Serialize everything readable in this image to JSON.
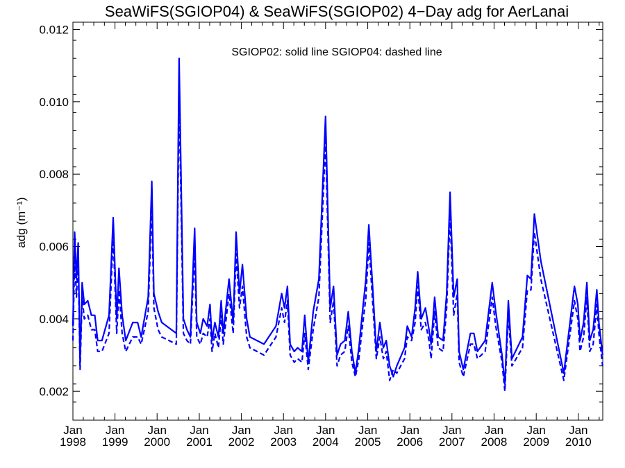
{
  "chart_data": {
    "type": "line",
    "title": "SeaWiFS(SGIOP04) & SeaWiFS(SGIOP02) 4−Day adg for AerLanai",
    "annotation": "SGIOP02: solid line   SGIOP04: dashed line",
    "ylabel": "adg (m⁻¹)",
    "xlabel": "",
    "xlim": [
      "1998-01-01",
      "2010-08-01"
    ],
    "ylim": [
      0.0012,
      0.0122
    ],
    "y_ticks": [
      "0.002",
      "0.004",
      "0.006",
      "0.008",
      "0.010",
      "0.012"
    ],
    "y_tick_values": [
      0.002,
      0.004,
      0.006,
      0.008,
      0.01,
      0.012
    ],
    "x_tick_labels": [
      {
        "month": "Jan",
        "year": "1998",
        "date": "1998-01-01"
      },
      {
        "month": "Jan",
        "year": "1999",
        "date": "1999-01-01"
      },
      {
        "month": "Jan",
        "year": "2000",
        "date": "2000-01-01"
      },
      {
        "month": "Jan",
        "year": "2001",
        "date": "2001-01-01"
      },
      {
        "month": "Jan",
        "year": "2002",
        "date": "2002-01-01"
      },
      {
        "month": "Jan",
        "year": "2003",
        "date": "2003-01-01"
      },
      {
        "month": "Jan",
        "year": "2004",
        "date": "2004-01-01"
      },
      {
        "month": "Jan",
        "year": "2005",
        "date": "2005-01-01"
      },
      {
        "month": "Jan",
        "year": "2006",
        "date": "2006-01-01"
      },
      {
        "month": "Jan",
        "year": "2007",
        "date": "2007-01-01"
      },
      {
        "month": "Jan",
        "year": "2008",
        "date": "2008-01-01"
      },
      {
        "month": "Jan",
        "year": "2009",
        "date": "2009-01-01"
      },
      {
        "month": "Jan",
        "year": "2010",
        "date": "2010-01-01"
      }
    ],
    "grid": false,
    "legend": "annotation-top-center",
    "series": [
      {
        "name": "SGIOP02",
        "style": "solid",
        "color": "#0000ff",
        "points": [
          [
            "1998-01-01",
            0.0038
          ],
          [
            "1998-01-16",
            0.0064
          ],
          [
            "1998-02-01",
            0.0051
          ],
          [
            "1998-02-16",
            0.0061
          ],
          [
            "1998-03-04",
            0.0028
          ],
          [
            "1998-03-22",
            0.005
          ],
          [
            "1998-04-10",
            0.0044
          ],
          [
            "1998-05-10",
            0.0045
          ],
          [
            "1998-06-10",
            0.0041
          ],
          [
            "1998-07-10",
            0.0041
          ],
          [
            "1998-08-04",
            0.0034
          ],
          [
            "1998-09-10",
            0.0034
          ],
          [
            "1998-11-10",
            0.0041
          ],
          [
            "1998-12-16",
            0.0068
          ],
          [
            "1999-01-16",
            0.004
          ],
          [
            "1999-02-04",
            0.0054
          ],
          [
            "1999-03-04",
            0.0041
          ],
          [
            "1999-04-04",
            0.0034
          ],
          [
            "1999-06-04",
            0.0039
          ],
          [
            "1999-07-16",
            0.0039
          ],
          [
            "1999-08-16",
            0.0035
          ],
          [
            "1999-10-16",
            0.0046
          ],
          [
            "1999-11-16",
            0.0078
          ],
          [
            "1999-12-04",
            0.0047
          ],
          [
            "2000-01-10",
            0.0042
          ],
          [
            "2000-02-10",
            0.0039
          ],
          [
            "2000-06-16",
            0.0036
          ],
          [
            "2000-07-10",
            0.0112
          ],
          [
            "2000-08-16",
            0.004
          ],
          [
            "2000-09-16",
            0.0037
          ],
          [
            "2000-10-16",
            0.0035
          ],
          [
            "2000-11-22",
            0.0065
          ],
          [
            "2000-12-10",
            0.0039
          ],
          [
            "2001-01-10",
            0.0036
          ],
          [
            "2001-02-04",
            0.004
          ],
          [
            "2001-03-10",
            0.0038
          ],
          [
            "2001-04-04",
            0.0044
          ],
          [
            "2001-04-22",
            0.0034
          ],
          [
            "2001-05-16",
            0.0039
          ],
          [
            "2001-06-16",
            0.0035
          ],
          [
            "2001-07-10",
            0.0045
          ],
          [
            "2001-07-28",
            0.0036
          ],
          [
            "2001-09-16",
            0.0051
          ],
          [
            "2001-10-22",
            0.0039
          ],
          [
            "2001-11-16",
            0.0064
          ],
          [
            "2001-12-16",
            0.0047
          ],
          [
            "2002-01-10",
            0.0055
          ],
          [
            "2002-02-16",
            0.004
          ],
          [
            "2002-03-16",
            0.0035
          ],
          [
            "2002-07-16",
            0.0033
          ],
          [
            "2002-10-28",
            0.0038
          ],
          [
            "2002-12-16",
            0.0047
          ],
          [
            "2003-01-10",
            0.0043
          ],
          [
            "2003-02-04",
            0.0049
          ],
          [
            "2003-02-28",
            0.0033
          ],
          [
            "2003-04-04",
            0.0031
          ],
          [
            "2003-05-04",
            0.0032
          ],
          [
            "2003-06-10",
            0.0031
          ],
          [
            "2003-07-04",
            0.0041
          ],
          [
            "2003-08-04",
            0.0028
          ],
          [
            "2003-09-16",
            0.0042
          ],
          [
            "2003-11-04",
            0.0051
          ],
          [
            "2004-01-01",
            0.0096
          ],
          [
            "2004-02-10",
            0.0043
          ],
          [
            "2004-03-10",
            0.0049
          ],
          [
            "2004-04-10",
            0.003
          ],
          [
            "2004-05-10",
            0.0033
          ],
          [
            "2004-06-16",
            0.0034
          ],
          [
            "2004-07-16",
            0.0042
          ],
          [
            "2004-08-16",
            0.0031
          ],
          [
            "2004-09-16",
            0.0025
          ],
          [
            "2004-10-16",
            0.0032
          ],
          [
            "2004-11-16",
            0.0042
          ],
          [
            "2004-12-16",
            0.0051
          ],
          [
            "2005-01-10",
            0.0066
          ],
          [
            "2005-02-16",
            0.0047
          ],
          [
            "2005-03-16",
            0.0031
          ],
          [
            "2005-04-16",
            0.0039
          ],
          [
            "2005-05-16",
            0.0032
          ],
          [
            "2005-06-10",
            0.0034
          ],
          [
            "2005-07-10",
            0.0027
          ],
          [
            "2005-08-10",
            0.0024
          ],
          [
            "2005-09-10",
            0.0027
          ],
          [
            "2005-11-16",
            0.0032
          ],
          [
            "2005-12-10",
            0.0038
          ],
          [
            "2006-01-16",
            0.0035
          ],
          [
            "2006-02-16",
            0.0043
          ],
          [
            "2006-03-10",
            0.0053
          ],
          [
            "2006-04-10",
            0.004
          ],
          [
            "2006-05-16",
            0.0043
          ],
          [
            "2006-06-16",
            0.0037
          ],
          [
            "2006-07-04",
            0.0033
          ],
          [
            "2006-08-04",
            0.0046
          ],
          [
            "2006-09-04",
            0.0035
          ],
          [
            "2006-10-16",
            0.0034
          ],
          [
            "2006-11-16",
            0.0047
          ],
          [
            "2006-12-16",
            0.0075
          ],
          [
            "2007-01-16",
            0.0046
          ],
          [
            "2007-02-16",
            0.0051
          ],
          [
            "2007-03-04",
            0.0031
          ],
          [
            "2007-04-10",
            0.0026
          ],
          [
            "2007-06-10",
            0.0036
          ],
          [
            "2007-07-10",
            0.0036
          ],
          [
            "2007-08-10",
            0.0031
          ],
          [
            "2007-10-16",
            0.0034
          ],
          [
            "2007-12-16",
            0.005
          ],
          [
            "2008-01-16",
            0.0042
          ],
          [
            "2008-03-10",
            0.003
          ],
          [
            "2008-04-04",
            0.0022
          ],
          [
            "2008-05-04",
            0.0045
          ],
          [
            "2008-06-04",
            0.0029
          ],
          [
            "2008-09-04",
            0.0035
          ],
          [
            "2008-10-16",
            0.0052
          ],
          [
            "2008-11-16",
            0.0051
          ],
          [
            "2008-12-16",
            0.0069
          ],
          [
            "2009-02-10",
            0.0056
          ],
          [
            "2009-08-28",
            0.0025
          ],
          [
            "2009-11-28",
            0.0049
          ],
          [
            "2009-12-28",
            0.0044
          ],
          [
            "2010-01-16",
            0.0034
          ],
          [
            "2010-02-16",
            0.0039
          ],
          [
            "2010-03-16",
            0.005
          ],
          [
            "2010-04-10",
            0.0034
          ],
          [
            "2010-05-10",
            0.0037
          ],
          [
            "2010-06-10",
            0.0048
          ],
          [
            "2010-06-28",
            0.0039
          ],
          [
            "2010-07-31",
            0.003
          ]
        ]
      },
      {
        "name": "SGIOP04",
        "style": "dashed",
        "color": "#0000ff",
        "points": [
          [
            "1998-01-01",
            0.0034
          ],
          [
            "1998-01-16",
            0.0057
          ],
          [
            "1998-02-01",
            0.0046
          ],
          [
            "1998-02-16",
            0.0057
          ],
          [
            "1998-03-04",
            0.0026
          ],
          [
            "1998-03-22",
            0.0046
          ],
          [
            "1998-04-10",
            0.004
          ],
          [
            "1998-05-10",
            0.0041
          ],
          [
            "1998-06-10",
            0.0037
          ],
          [
            "1998-07-10",
            0.0037
          ],
          [
            "1998-08-04",
            0.0031
          ],
          [
            "1998-09-10",
            0.0031
          ],
          [
            "1998-11-10",
            0.0036
          ],
          [
            "1998-12-16",
            0.0063
          ],
          [
            "1999-01-16",
            0.0036
          ],
          [
            "1999-02-04",
            0.0048
          ],
          [
            "1999-03-04",
            0.0036
          ],
          [
            "1999-04-04",
            0.0031
          ],
          [
            "1999-06-04",
            0.0035
          ],
          [
            "1999-07-16",
            0.0035
          ],
          [
            "1999-08-16",
            0.0033
          ],
          [
            "1999-10-16",
            0.0042
          ],
          [
            "1999-11-16",
            0.0072
          ],
          [
            "1999-12-04",
            0.0043
          ],
          [
            "2000-01-10",
            0.0037
          ],
          [
            "2000-02-10",
            0.0035
          ],
          [
            "2000-06-16",
            0.0033
          ],
          [
            "2000-07-10",
            0.0102
          ],
          [
            "2000-08-16",
            0.0036
          ],
          [
            "2000-09-16",
            0.0034
          ],
          [
            "2000-10-16",
            0.0033
          ],
          [
            "2000-11-22",
            0.0059
          ],
          [
            "2000-12-10",
            0.0035
          ],
          [
            "2001-01-10",
            0.0033
          ],
          [
            "2001-02-04",
            0.0036
          ],
          [
            "2001-03-10",
            0.0035
          ],
          [
            "2001-04-04",
            0.004
          ],
          [
            "2001-04-22",
            0.0031
          ],
          [
            "2001-05-16",
            0.0036
          ],
          [
            "2001-06-16",
            0.0032
          ],
          [
            "2001-07-10",
            0.0041
          ],
          [
            "2001-07-28",
            0.0033
          ],
          [
            "2001-09-16",
            0.0047
          ],
          [
            "2001-10-22",
            0.0036
          ],
          [
            "2001-11-16",
            0.0058
          ],
          [
            "2001-12-16",
            0.0043
          ],
          [
            "2002-01-10",
            0.0049
          ],
          [
            "2002-02-16",
            0.0035
          ],
          [
            "2002-03-16",
            0.0032
          ],
          [
            "2002-07-16",
            0.003
          ],
          [
            "2002-10-28",
            0.0035
          ],
          [
            "2002-12-16",
            0.0043
          ],
          [
            "2003-01-10",
            0.0039
          ],
          [
            "2003-02-04",
            0.0045
          ],
          [
            "2003-02-28",
            0.003
          ],
          [
            "2003-04-04",
            0.0028
          ],
          [
            "2003-05-04",
            0.0029
          ],
          [
            "2003-06-10",
            0.0028
          ],
          [
            "2003-07-04",
            0.0036
          ],
          [
            "2003-08-04",
            0.0026
          ],
          [
            "2003-09-16",
            0.0037
          ],
          [
            "2003-11-04",
            0.0046
          ],
          [
            "2004-01-01",
            0.0089
          ],
          [
            "2004-02-10",
            0.0039
          ],
          [
            "2004-03-10",
            0.0045
          ],
          [
            "2004-04-10",
            0.0027
          ],
          [
            "2004-05-10",
            0.003
          ],
          [
            "2004-06-16",
            0.0031
          ],
          [
            "2004-07-16",
            0.0038
          ],
          [
            "2004-08-16",
            0.0028
          ],
          [
            "2004-09-16",
            0.0024
          ],
          [
            "2004-10-16",
            0.0029
          ],
          [
            "2004-11-16",
            0.0038
          ],
          [
            "2004-12-16",
            0.0046
          ],
          [
            "2005-01-10",
            0.0061
          ],
          [
            "2005-02-16",
            0.0043
          ],
          [
            "2005-03-16",
            0.0029
          ],
          [
            "2005-04-16",
            0.0035
          ],
          [
            "2005-05-16",
            0.0029
          ],
          [
            "2005-06-10",
            0.0031
          ],
          [
            "2005-07-10",
            0.0023
          ],
          [
            "2005-08-10",
            0.0026
          ],
          [
            "2005-09-10",
            0.0025
          ],
          [
            "2005-11-16",
            0.0029
          ],
          [
            "2005-12-10",
            0.0035
          ],
          [
            "2006-01-16",
            0.0034
          ],
          [
            "2006-02-16",
            0.0039
          ],
          [
            "2006-03-10",
            0.0049
          ],
          [
            "2006-04-10",
            0.0037
          ],
          [
            "2006-05-16",
            0.0039
          ],
          [
            "2006-06-16",
            0.0034
          ],
          [
            "2006-07-04",
            0.0029
          ],
          [
            "2006-08-04",
            0.0042
          ],
          [
            "2006-09-04",
            0.0032
          ],
          [
            "2006-10-16",
            0.0031
          ],
          [
            "2006-11-16",
            0.0043
          ],
          [
            "2006-12-16",
            0.0069
          ],
          [
            "2007-01-16",
            0.0041
          ],
          [
            "2007-02-16",
            0.0047
          ],
          [
            "2007-03-04",
            0.0028
          ],
          [
            "2007-04-10",
            0.0024
          ],
          [
            "2007-06-10",
            0.0033
          ],
          [
            "2007-07-10",
            0.0033
          ],
          [
            "2007-08-10",
            0.0029
          ],
          [
            "2007-10-16",
            0.0031
          ],
          [
            "2007-12-16",
            0.0046
          ],
          [
            "2008-01-16",
            0.0038
          ],
          [
            "2008-03-10",
            0.0028
          ],
          [
            "2008-04-04",
            0.002
          ],
          [
            "2008-05-04",
            0.0041
          ],
          [
            "2008-06-04",
            0.0027
          ],
          [
            "2008-09-04",
            0.0032
          ],
          [
            "2008-10-16",
            0.0048
          ],
          [
            "2008-11-16",
            0.0048
          ],
          [
            "2008-12-16",
            0.0064
          ],
          [
            "2009-02-10",
            0.0051
          ],
          [
            "2009-08-28",
            0.0023
          ],
          [
            "2009-11-28",
            0.0045
          ],
          [
            "2009-12-28",
            0.004
          ],
          [
            "2010-01-16",
            0.0031
          ],
          [
            "2010-02-16",
            0.0035
          ],
          [
            "2010-03-16",
            0.0046
          ],
          [
            "2010-04-10",
            0.0031
          ],
          [
            "2010-05-10",
            0.0033
          ],
          [
            "2010-06-10",
            0.0044
          ],
          [
            "2010-06-28",
            0.0036
          ],
          [
            "2010-07-31",
            0.0027
          ]
        ]
      }
    ]
  }
}
